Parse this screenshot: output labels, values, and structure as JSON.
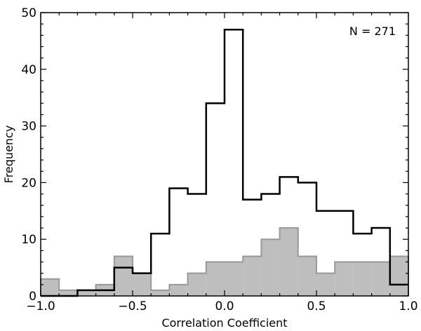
{
  "chart_data": {
    "type": "histogram",
    "xlabel": "Correlation Coefficient",
    "ylabel": "Frequency",
    "xlim": [
      -1.0,
      1.0
    ],
    "ylim": [
      0,
      50
    ],
    "grid": false,
    "annotation": "N = 271",
    "x_ticks": [
      {
        "value": -1.0,
        "label": "−1.0"
      },
      {
        "value": -0.5,
        "label": "−0.5"
      },
      {
        "value": 0.0,
        "label": "0.0"
      },
      {
        "value": 0.5,
        "label": "0.5"
      },
      {
        "value": 1.0,
        "label": "1.0"
      }
    ],
    "y_ticks": [
      {
        "value": 0,
        "label": "0"
      },
      {
        "value": 10,
        "label": "10"
      },
      {
        "value": 20,
        "label": "20"
      },
      {
        "value": 30,
        "label": "30"
      },
      {
        "value": 40,
        "label": "40"
      },
      {
        "value": 50,
        "label": "50"
      }
    ],
    "bin_edges": [
      -1.0,
      -0.9,
      -0.8,
      -0.7,
      -0.6,
      -0.5,
      -0.4,
      -0.3,
      -0.2,
      -0.1,
      0.0,
      0.1,
      0.2,
      0.3,
      0.4,
      0.5,
      0.6,
      0.7,
      0.8,
      0.9,
      1.0
    ],
    "series": [
      {
        "style": "step-outline",
        "color": "#000000",
        "values": [
          0,
          0,
          1,
          1,
          5,
          4,
          11,
          19,
          18,
          34,
          47,
          17,
          18,
          21,
          20,
          15,
          15,
          11,
          12,
          2
        ]
      },
      {
        "style": "filled",
        "color": "#bebebe",
        "edge_color": "#999999",
        "values": [
          3,
          1,
          1,
          2,
          7,
          4,
          1,
          2,
          4,
          6,
          6,
          7,
          10,
          12,
          7,
          4,
          6,
          6,
          6,
          7
        ]
      }
    ]
  }
}
